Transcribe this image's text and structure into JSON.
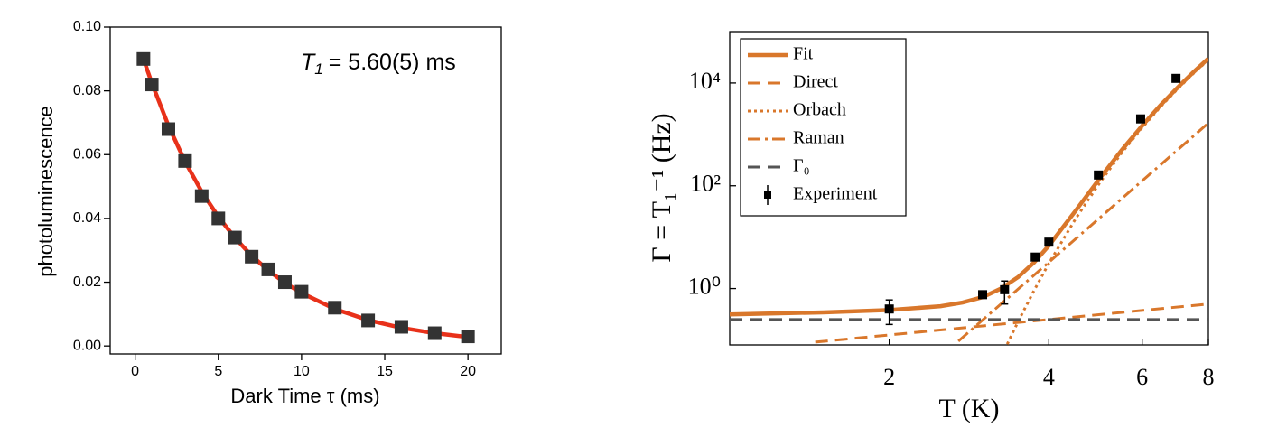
{
  "chart_data": [
    {
      "type": "scatter",
      "xlabel": "Dark Time τ (ms)",
      "ylabel": "photoluminescence",
      "annotation": {
        "symbol": "T",
        "subscript": "1",
        "text": "= 5.60(5) ms"
      },
      "xlim": [
        -1.5,
        22
      ],
      "xticks": [
        0,
        5,
        10,
        15,
        20
      ],
      "ylim": [
        -0.0025,
        0.1
      ],
      "yticks": [
        {
          "value": 0,
          "label": "0.00"
        },
        {
          "value": 0.02,
          "label": "0.02"
        },
        {
          "value": 0.04,
          "label": "0.04"
        },
        {
          "value": 0.06,
          "label": "0.06"
        },
        {
          "value": 0.08,
          "label": "0.08"
        },
        {
          "value": 0.1,
          "label": "0.10"
        }
      ],
      "tick_direction": "out",
      "series": [
        {
          "marker": "square",
          "color": "#333333",
          "x": [
            0.5,
            1,
            2,
            3,
            4,
            5,
            6,
            7,
            8,
            9,
            10,
            12,
            14,
            16,
            18,
            20
          ],
          "values": [
            0.09,
            0.082,
            0.068,
            0.058,
            0.047,
            0.04,
            0.034,
            0.028,
            0.024,
            0.02,
            0.017,
            0.012,
            0.008,
            0.006,
            0.004,
            0.003
          ]
        },
        {
          "line": "solid",
          "color": "#e8311a",
          "x": [
            0.5,
            1,
            2,
            3,
            4,
            5,
            6,
            7,
            8,
            9,
            10,
            12,
            14,
            16,
            18,
            20
          ],
          "values": [
            0.09,
            0.0825,
            0.0691,
            0.0578,
            0.0484,
            0.0405,
            0.0339,
            0.0283,
            0.0237,
            0.0198,
            0.0166,
            0.0116,
            0.0081,
            0.0057,
            0.004,
            0.0028
          ]
        }
      ]
    },
    {
      "type": "line",
      "xlabel": "T (K)",
      "ylabel": "Γ = T₁⁻¹ (Hz)",
      "xscale": "log",
      "yscale": "log",
      "xlim": [
        1,
        8
      ],
      "xticks": [
        2,
        4,
        6,
        8
      ],
      "ylim": [
        0.08,
        100000
      ],
      "yticks": [
        {
          "value": 1,
          "label": "10⁰"
        },
        {
          "value": 100,
          "label": "10²"
        },
        {
          "value": 10000,
          "label": "10⁴"
        }
      ],
      "tick_direction": "in",
      "legend": "upper left",
      "series": [
        {
          "name": "Fit",
          "line": "solid",
          "color": "#d9772b",
          "x": [
            1,
            1.5,
            2,
            2.5,
            2.75,
            3,
            3.25,
            3.5,
            3.75,
            4,
            4.5,
            5,
            5.5,
            6,
            6.5,
            7,
            7.5,
            8
          ],
          "values": [
            0.313,
            0.344,
            0.381,
            0.453,
            0.534,
            0.68,
            1.0,
            1.67,
            3.21,
            6.84,
            33.3,
            143,
            506,
            1476,
            3720,
            8170,
            16330,
            29960
          ]
        },
        {
          "name": "Direct",
          "line": "dashed",
          "color": "#d9772b",
          "x": [
            1.45,
            4,
            8
          ],
          "values": [
            0.0906,
            0.25,
            0.5
          ]
        },
        {
          "name": "Orbach",
          "line": "dotted",
          "color": "#d9772b",
          "x": [
            3.3,
            3.4,
            3.5,
            3.75,
            4,
            4.5,
            5,
            5.5,
            6,
            6.5,
            7,
            7.5,
            8
          ],
          "values": [
            0.064,
            0.123,
            0.227,
            0.91,
            3.09,
            23.4,
            118,
            448,
            1350,
            3460,
            7670,
            15400,
            28300
          ]
        },
        {
          "name": "Raman",
          "line": "dashdot",
          "color": "#d9772b",
          "x": [
            2.7,
            4,
            8
          ],
          "values": [
            0.0946,
            3.25,
            1664
          ]
        },
        {
          "name": "Γ₀",
          "line": "dashed",
          "color": "#555555",
          "x": [
            1,
            8
          ],
          "values": [
            0.25,
            0.25
          ]
        },
        {
          "name": "Experiment",
          "marker": "square",
          "color": "#000000",
          "x": [
            2,
            3.0,
            3.3,
            3.77,
            4,
            4.96,
            5.96,
            6.95
          ],
          "values": [
            0.4,
            0.76,
            0.95,
            4.1,
            8.0,
            162,
            2000,
            12300
          ],
          "errors": [
            0.2,
            null,
            0.45,
            null,
            null,
            null,
            null,
            null
          ]
        }
      ]
    }
  ]
}
